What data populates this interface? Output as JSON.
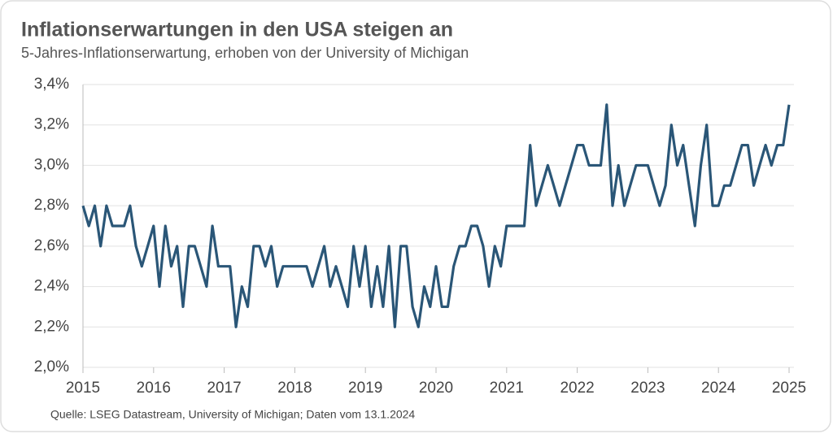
{
  "chart_data": {
    "type": "line",
    "title": "Inflationserwartungen in den USA steigen an",
    "subtitle": "5-Jahres-Inflationserwartung, erhoben von der University of Michigan",
    "source": "Quelle: LSEG Datastream, University of Michigan; Daten vom 13.1.2024",
    "x": [
      2015,
      2015.083,
      2015.167,
      2015.25,
      2015.333,
      2015.417,
      2015.5,
      2015.583,
      2015.667,
      2015.75,
      2015.833,
      2015.917,
      2016,
      2016.083,
      2016.167,
      2016.25,
      2016.333,
      2016.417,
      2016.5,
      2016.583,
      2016.667,
      2016.75,
      2016.833,
      2016.917,
      2017,
      2017.083,
      2017.167,
      2017.25,
      2017.333,
      2017.417,
      2017.5,
      2017.583,
      2017.667,
      2017.75,
      2017.833,
      2017.917,
      2018,
      2018.083,
      2018.167,
      2018.25,
      2018.333,
      2018.417,
      2018.5,
      2018.583,
      2018.667,
      2018.75,
      2018.833,
      2018.917,
      2019,
      2019.083,
      2019.167,
      2019.25,
      2019.333,
      2019.417,
      2019.5,
      2019.583,
      2019.667,
      2019.75,
      2019.833,
      2019.917,
      2020,
      2020.083,
      2020.167,
      2020.25,
      2020.333,
      2020.417,
      2020.5,
      2020.583,
      2020.667,
      2020.75,
      2020.833,
      2020.917,
      2021,
      2021.083,
      2021.167,
      2021.25,
      2021.333,
      2021.417,
      2021.5,
      2021.583,
      2021.667,
      2021.75,
      2021.833,
      2021.917,
      2022,
      2022.083,
      2022.167,
      2022.25,
      2022.333,
      2022.417,
      2022.5,
      2022.583,
      2022.667,
      2022.75,
      2022.833,
      2022.917,
      2023,
      2023.083,
      2023.167,
      2023.25,
      2023.333,
      2023.417,
      2023.5,
      2023.583,
      2023.667,
      2023.75,
      2023.833,
      2023.917,
      2024,
      2024.083,
      2024.167,
      2024.25,
      2024.333,
      2024.417,
      2024.5,
      2024.583,
      2024.667,
      2024.75,
      2024.833,
      2024.917,
      2025
    ],
    "series": [
      {
        "name": "5-Jahres-Inflationserwartung",
        "color": "#2a5677",
        "values": [
          2.8,
          2.7,
          2.8,
          2.6,
          2.8,
          2.7,
          2.7,
          2.7,
          2.8,
          2.6,
          2.5,
          2.6,
          2.7,
          2.4,
          2.7,
          2.5,
          2.6,
          2.3,
          2.6,
          2.6,
          2.5,
          2.4,
          2.7,
          2.5,
          2.5,
          2.5,
          2.2,
          2.4,
          2.3,
          2.6,
          2.6,
          2.5,
          2.6,
          2.4,
          2.5,
          2.5,
          2.5,
          2.5,
          2.5,
          2.4,
          2.5,
          2.6,
          2.4,
          2.5,
          2.4,
          2.3,
          2.6,
          2.4,
          2.6,
          2.3,
          2.5,
          2.3,
          2.6,
          2.2,
          2.6,
          2.6,
          2.3,
          2.2,
          2.4,
          2.3,
          2.5,
          2.3,
          2.3,
          2.5,
          2.6,
          2.6,
          2.7,
          2.7,
          2.6,
          2.4,
          2.6,
          2.5,
          2.7,
          2.7,
          2.7,
          2.7,
          3.1,
          2.8,
          2.9,
          3.0,
          2.9,
          2.8,
          2.9,
          3.0,
          3.1,
          3.1,
          3.0,
          3.0,
          3.0,
          3.3,
          2.8,
          3.0,
          2.8,
          2.9,
          3.0,
          3.0,
          3.0,
          2.9,
          2.8,
          2.9,
          3.2,
          3.0,
          3.1,
          2.9,
          2.7,
          3.0,
          3.2,
          2.8,
          2.8,
          2.9,
          2.9,
          3.0,
          3.1,
          3.1,
          2.9,
          3.0,
          3.1,
          3.0,
          3.1,
          3.1,
          3.3
        ]
      }
    ],
    "xlim": [
      2015,
      2025
    ],
    "xticks": [
      2015,
      2016,
      2017,
      2018,
      2019,
      2020,
      2021,
      2022,
      2023,
      2024,
      2025
    ],
    "ylim": [
      2.0,
      3.4
    ],
    "yticks": [
      {
        "value": 2.0,
        "label": "2,0%"
      },
      {
        "value": 2.2,
        "label": "2,2%"
      },
      {
        "value": 2.4,
        "label": "2,4%"
      },
      {
        "value": 2.6,
        "label": "2,6%"
      },
      {
        "value": 2.8,
        "label": "2,8%"
      },
      {
        "value": 3.0,
        "label": "3,0%"
      },
      {
        "value": 3.2,
        "label": "3,2%"
      },
      {
        "value": 3.4,
        "label": "3,4%"
      }
    ],
    "grid": true
  }
}
